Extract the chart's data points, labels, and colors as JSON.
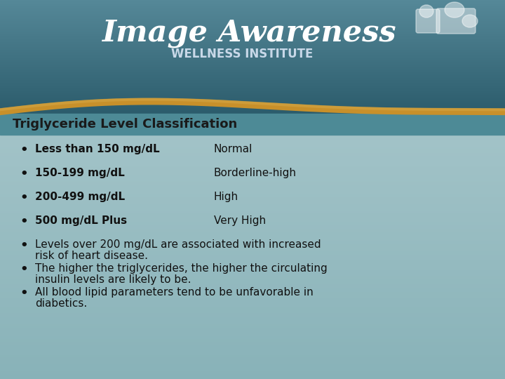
{
  "title": "Triglyceride Level Classification",
  "header_text1": "Image Awareness",
  "header_text2": "WELLNESS INSTITUTE",
  "title_color": "#1a1a1a",
  "title_fontsize": 13,
  "bullet_items": [
    {
      "left": "Less than 150 mg/dL",
      "right": "Normal",
      "bold": true,
      "multiline": false
    },
    {
      "left": "150-199 mg/dL",
      "right": "Borderline-high",
      "bold": true,
      "multiline": false
    },
    {
      "left": "200-499 mg/dL",
      "right": "High",
      "bold": true,
      "multiline": false
    },
    {
      "left": "500 mg/dL Plus",
      "right": "Very High",
      "bold": true,
      "multiline": false
    },
    {
      "left": "Levels over 200 mg/dL are associated with increased",
      "left2": "risk of heart disease.",
      "right": "",
      "bold": false,
      "multiline": true
    },
    {
      "left": "The higher the triglycerides, the higher the circulating",
      "left2": "insulin levels are likely to be.",
      "right": "",
      "bold": false,
      "multiline": true
    },
    {
      "left": "All blood lipid parameters tend to be unfavorable in",
      "left2": "diabetics.",
      "right": "",
      "bold": false,
      "multiline": true
    }
  ],
  "bullet_fontsize": 11,
  "bullet_text_color": "#111111",
  "header_title_color": "#ffffff",
  "header_subtitle_color": "#c8d8e8",
  "gold_wave_color": "#c8902a",
  "gold_wave_color2": "#d4a848"
}
